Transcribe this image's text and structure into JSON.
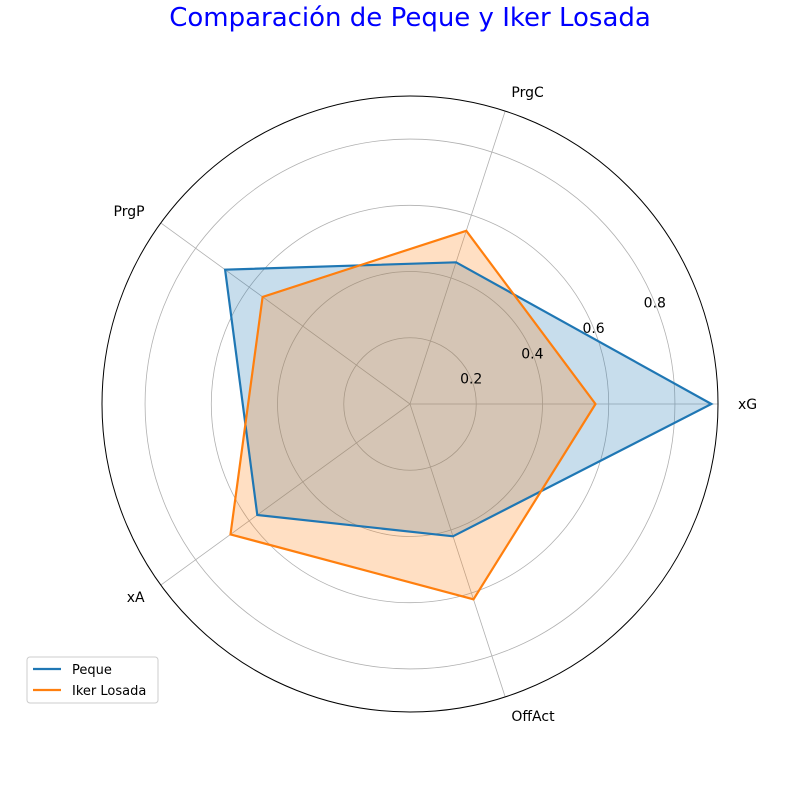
{
  "chart_data": {
    "type": "radar",
    "title": "Comparación de Peque y Iker Losada",
    "title_color": "#0000ff",
    "categories": [
      "xG",
      "PrgC",
      "PrgP",
      "xA",
      "OffAct"
    ],
    "radial_ticks": [
      0.2,
      0.4,
      0.6,
      0.8
    ],
    "radial_range": [
      0,
      0.93
    ],
    "grid": true,
    "legend_position": "lower-left",
    "series": [
      {
        "name": "Peque",
        "color": "#1f77b4",
        "values": [
          0.91,
          0.45,
          0.69,
          0.57,
          0.42
        ]
      },
      {
        "name": "Iker Losada",
        "color": "#ff7f0e",
        "values": [
          0.56,
          0.55,
          0.55,
          0.67,
          0.62
        ]
      }
    ]
  }
}
